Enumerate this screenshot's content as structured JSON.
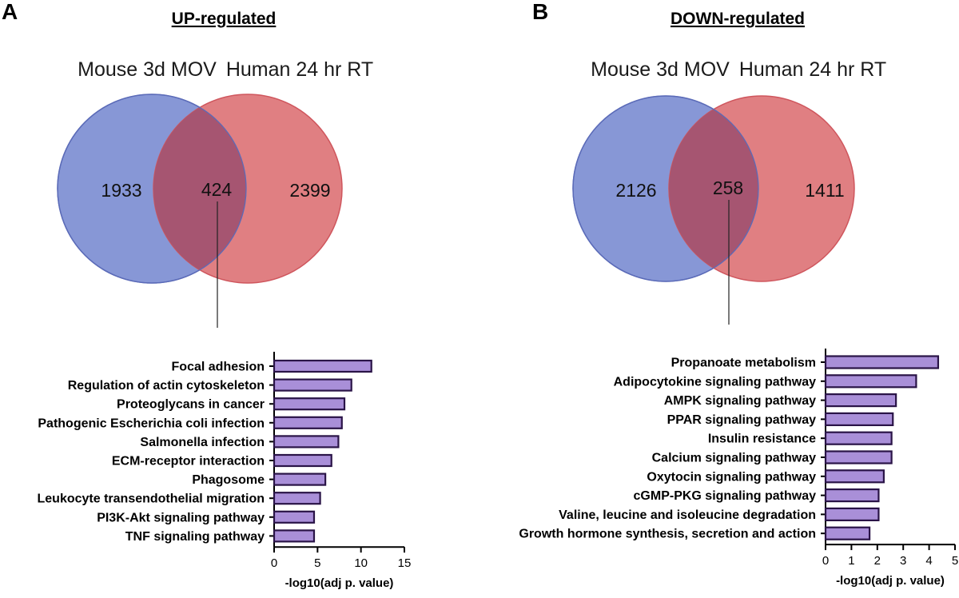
{
  "colors": {
    "blue": "#8797d6",
    "blue_stroke": "#5b6bb8",
    "red": "#e07f82",
    "red_stroke": "#cf565d",
    "overlap": "#a65571",
    "bar_fill": "#a98fd8",
    "bar_stroke": "#2a1447"
  },
  "panel_a": {
    "letter": "A",
    "title": "UP-regulated",
    "venn": {
      "left_label": "Mouse 3d MOV",
      "right_label": "Human 24 hr RT",
      "left_only": "1933",
      "overlap": "424",
      "right_only": "2399"
    }
  },
  "panel_b": {
    "letter": "B",
    "title": "DOWN-regulated",
    "venn": {
      "left_label": "Mouse 3d MOV",
      "right_label": "Human 24 hr RT",
      "left_only": "2126",
      "overlap": "258",
      "right_only": "1411"
    }
  },
  "chart_data": [
    {
      "type": "bar",
      "orientation": "horizontal",
      "title": "",
      "xlabel": "-log10(adj p. value)",
      "ylabel": "",
      "xlim": [
        0,
        15
      ],
      "xticks": [
        0,
        5,
        10,
        15
      ],
      "categories": [
        "Focal adhesion",
        "Regulation of actin cytoskeleton",
        "Proteoglycans in cancer",
        "Pathogenic Escherichia coli infection",
        "Salmonella infection",
        "ECM-receptor interaction",
        "Phagosome",
        "Leukocyte transendothelial migration",
        "PI3K-Akt signaling pathway",
        "TNF signaling pathway"
      ],
      "values": [
        11.2,
        8.9,
        8.1,
        7.8,
        7.4,
        6.6,
        5.9,
        5.3,
        4.6,
        4.6
      ]
    },
    {
      "type": "bar",
      "orientation": "horizontal",
      "title": "",
      "xlabel": "-log10(adj p. value)",
      "ylabel": "",
      "xlim": [
        0,
        5
      ],
      "xticks": [
        0,
        1,
        2,
        3,
        4,
        5
      ],
      "categories": [
        "Propanoate metabolism",
        "Adipocytokine signaling pathway",
        "AMPK signaling pathway",
        "PPAR signaling pathway",
        "Insulin resistance",
        "Calcium signaling pathway",
        "Oxytocin signaling pathway",
        "cGMP-PKG signaling pathway",
        "Valine, leucine and isoleucine degradation",
        "Growth hormone synthesis, secretion and action"
      ],
      "values": [
        4.35,
        3.5,
        2.72,
        2.6,
        2.55,
        2.55,
        2.25,
        2.05,
        2.05,
        1.7
      ]
    }
  ]
}
